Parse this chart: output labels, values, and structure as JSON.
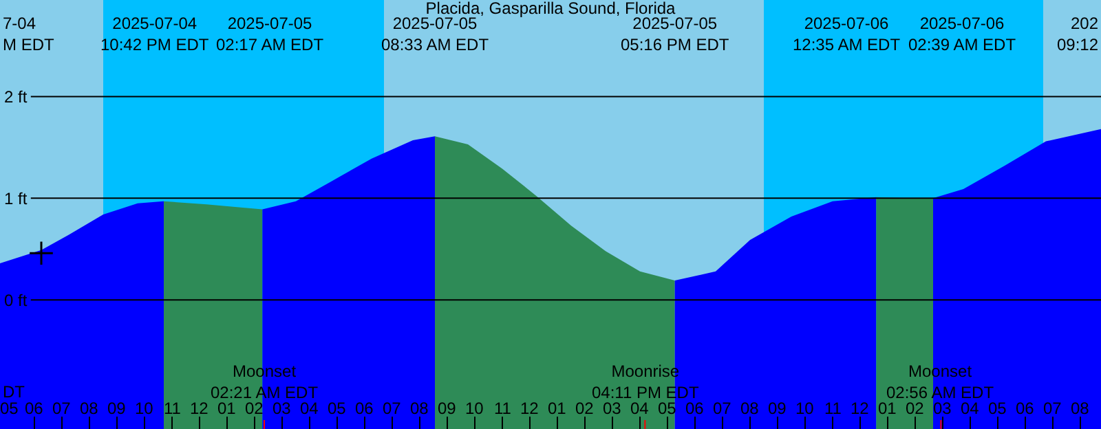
{
  "chart_data": {
    "type": "area",
    "title": "Placida, Gasparilla Sound, Florida",
    "xlim": [
      "2025-07-04T16:45",
      "2025-07-06T08:45"
    ],
    "ylim": [
      -1.27,
      2.95
    ],
    "yticks": [
      {
        "value": 0,
        "label": "0 ft"
      },
      {
        "value": 1,
        "label": "1 ft"
      },
      {
        "value": 2,
        "label": "2 ft"
      }
    ],
    "xticks": [
      {
        "value": "2025-07-04T17:00",
        "label": "05"
      },
      {
        "value": "2025-07-04T18:00",
        "label": "06"
      },
      {
        "value": "2025-07-04T19:00",
        "label": "07"
      },
      {
        "value": "2025-07-04T20:00",
        "label": "08"
      },
      {
        "value": "2025-07-04T21:00",
        "label": "09"
      },
      {
        "value": "2025-07-04T22:00",
        "label": "10"
      },
      {
        "value": "2025-07-04T23:00",
        "label": "11"
      },
      {
        "value": "2025-07-05T00:00",
        "label": "12"
      },
      {
        "value": "2025-07-05T01:00",
        "label": "01"
      },
      {
        "value": "2025-07-05T02:00",
        "label": "02"
      },
      {
        "value": "2025-07-05T03:00",
        "label": "03"
      },
      {
        "value": "2025-07-05T04:00",
        "label": "04"
      },
      {
        "value": "2025-07-05T05:00",
        "label": "05"
      },
      {
        "value": "2025-07-05T06:00",
        "label": "06"
      },
      {
        "value": "2025-07-05T07:00",
        "label": "07"
      },
      {
        "value": "2025-07-05T08:00",
        "label": "08"
      },
      {
        "value": "2025-07-05T09:00",
        "label": "09"
      },
      {
        "value": "2025-07-05T10:00",
        "label": "10"
      },
      {
        "value": "2025-07-05T11:00",
        "label": "11"
      },
      {
        "value": "2025-07-05T12:00",
        "label": "12"
      },
      {
        "value": "2025-07-05T13:00",
        "label": "01"
      },
      {
        "value": "2025-07-05T14:00",
        "label": "02"
      },
      {
        "value": "2025-07-05T15:00",
        "label": "03"
      },
      {
        "value": "2025-07-05T16:00",
        "label": "04"
      },
      {
        "value": "2025-07-05T17:00",
        "label": "05"
      },
      {
        "value": "2025-07-05T18:00",
        "label": "06"
      },
      {
        "value": "2025-07-05T19:00",
        "label": "07"
      },
      {
        "value": "2025-07-05T20:00",
        "label": "08"
      },
      {
        "value": "2025-07-05T21:00",
        "label": "09"
      },
      {
        "value": "2025-07-05T22:00",
        "label": "10"
      },
      {
        "value": "2025-07-05T23:00",
        "label": "11"
      },
      {
        "value": "2025-07-06T00:00",
        "label": "12"
      },
      {
        "value": "2025-07-06T01:00",
        "label": "01"
      },
      {
        "value": "2025-07-06T02:00",
        "label": "02"
      },
      {
        "value": "2025-07-06T03:00",
        "label": "03"
      },
      {
        "value": "2025-07-06T04:00",
        "label": "04"
      },
      {
        "value": "2025-07-06T05:00",
        "label": "05"
      },
      {
        "value": "2025-07-06T06:00",
        "label": "06"
      },
      {
        "value": "2025-07-06T07:00",
        "label": "07"
      },
      {
        "value": "2025-07-06T08:00",
        "label": "08"
      }
    ],
    "grid": "y",
    "bands": [
      {
        "axis": "x",
        "from": "2025-07-04T16:45",
        "to": "2025-07-04T20:30",
        "color": "#87ceeb"
      },
      {
        "axis": "x",
        "from": "2025-07-04T20:30",
        "to": "2025-07-05T06:42",
        "color": "#00bfff"
      },
      {
        "axis": "x",
        "from": "2025-07-05T06:42",
        "to": "2025-07-05T20:30",
        "color": "#87ceeb"
      },
      {
        "axis": "x",
        "from": "2025-07-05T20:30",
        "to": "2025-07-06T06:39",
        "color": "#00bfff"
      },
      {
        "axis": "x",
        "from": "2025-07-06T06:39",
        "to": "2025-07-06T08:45",
        "color": "#87ceeb"
      }
    ],
    "series": [
      {
        "color": "#0000ff",
        "x": [
          "2025-07-04T16:45",
          "2025-07-04T18:15",
          "2025-07-04T19:15",
          "2025-07-04T20:30",
          "2025-07-04T21:45",
          "2025-07-04T22:42"
        ],
        "values": [
          0.36,
          0.49,
          0.64,
          0.84,
          0.95,
          0.97
        ]
      },
      {
        "color": "#2e8b57",
        "x": [
          "2025-07-04T22:42",
          "2025-07-05T00:15",
          "2025-07-05T01:30",
          "2025-07-05T02:17"
        ],
        "values": [
          0.97,
          0.94,
          0.91,
          0.89
        ]
      },
      {
        "color": "#0000ff",
        "x": [
          "2025-07-05T02:17",
          "2025-07-05T03:30",
          "2025-07-05T04:45",
          "2025-07-05T06:15",
          "2025-07-05T07:45",
          "2025-07-05T08:33"
        ],
        "values": [
          0.89,
          0.97,
          1.16,
          1.39,
          1.57,
          1.61
        ]
      },
      {
        "color": "#2e8b57",
        "x": [
          "2025-07-05T08:33",
          "2025-07-05T09:45",
          "2025-07-05T11:00",
          "2025-07-05T12:15",
          "2025-07-05T13:30",
          "2025-07-05T14:45",
          "2025-07-05T16:00",
          "2025-07-05T17:16"
        ],
        "values": [
          1.61,
          1.53,
          1.29,
          1.02,
          0.73,
          0.48,
          0.28,
          0.19
        ]
      },
      {
        "color": "#0000ff",
        "x": [
          "2025-07-05T17:16",
          "2025-07-05T18:45",
          "2025-07-05T20:00",
          "2025-07-05T21:30",
          "2025-07-05T23:00",
          "2025-07-06T00:35"
        ],
        "values": [
          0.19,
          0.28,
          0.59,
          0.82,
          0.97,
          1.01
        ]
      },
      {
        "color": "#2e8b57",
        "x": [
          "2025-07-06T00:35",
          "2025-07-06T01:45",
          "2025-07-06T02:39"
        ],
        "values": [
          1.01,
          1.0,
          1.0
        ]
      },
      {
        "color": "#0000ff",
        "x": [
          "2025-07-06T02:39",
          "2025-07-06T03:45",
          "2025-07-06T05:15",
          "2025-07-06T06:45",
          "2025-07-06T08:45"
        ],
        "values": [
          1.0,
          1.09,
          1.32,
          1.56,
          1.68
        ]
      },
      {
        "type": "scatter",
        "marker": "cross",
        "color": "#000000",
        "x": [
          "2025-07-04T18:15"
        ],
        "values": [
          0.46
        ]
      }
    ],
    "annotations": [
      "7-04\nM EDT",
      "202\n09:12",
      "DT",
      "2025-07-04\n10:42 PM EDT",
      "2025-07-05\n02:17 AM EDT",
      "2025-07-05\n08:33 AM EDT",
      "2025-07-05\n05:16 PM EDT",
      "2025-07-06\n12:35 AM EDT",
      "2025-07-06\n02:39 AM EDT",
      {
        "text": "Moonset\n02:21 AM EDT",
        "x": "2025-07-05T02:21",
        "y": -1.27
      },
      {
        "text": "Moonrise\n04:11 PM EDT",
        "x": "2025-07-05T16:11",
        "y": -1.27
      },
      {
        "text": "Moonset\n02:56 AM EDT",
        "x": "2025-07-06T02:56",
        "y": -1.27
      }
    ]
  }
}
